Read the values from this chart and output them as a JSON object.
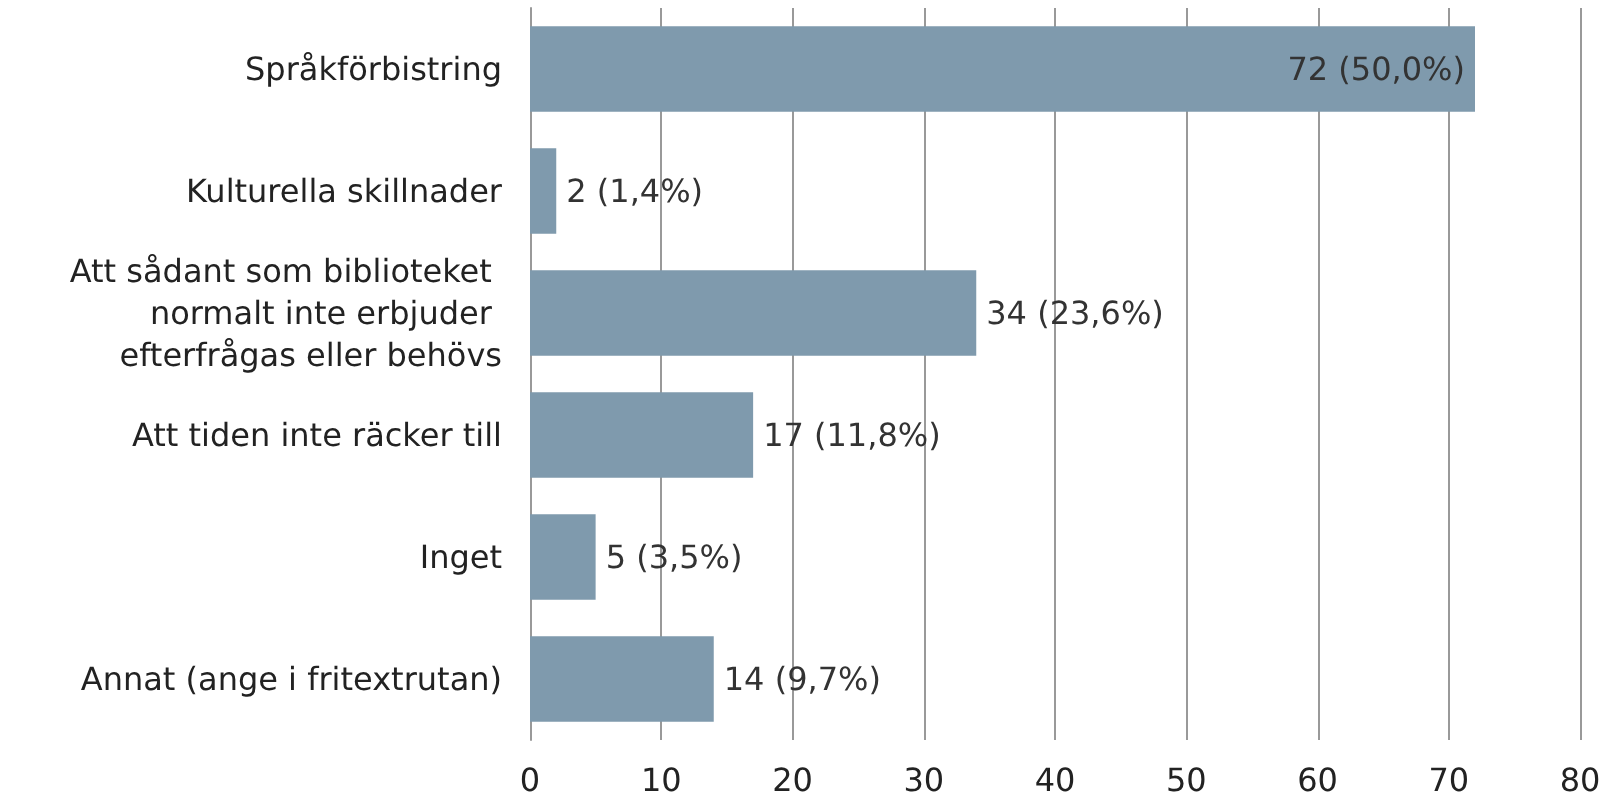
{
  "chart_data": {
    "type": "bar",
    "orientation": "horizontal",
    "categories": [
      "Språkförbistring",
      "Kulturella skillnader",
      "Att sådant som biblioteket normalt inte erbjuder efterfrågas eller behövs",
      "Att tiden inte räcker till",
      "Inget",
      "Annat (ange i fritextrutan)"
    ],
    "values": [
      72,
      2,
      34,
      17,
      5,
      14
    ],
    "value_labels": [
      "72 (50,0%)",
      "2 (1,4%)",
      "34 (23,6%)",
      "17 (11,8%)",
      "5 (3,5%)",
      "14 (9,7%)"
    ],
    "color": "#7f9aad",
    "xlim": [
      0,
      80
    ],
    "xticks": [
      0,
      10,
      20,
      30,
      40,
      50,
      60,
      70,
      80
    ],
    "grid": "x"
  }
}
